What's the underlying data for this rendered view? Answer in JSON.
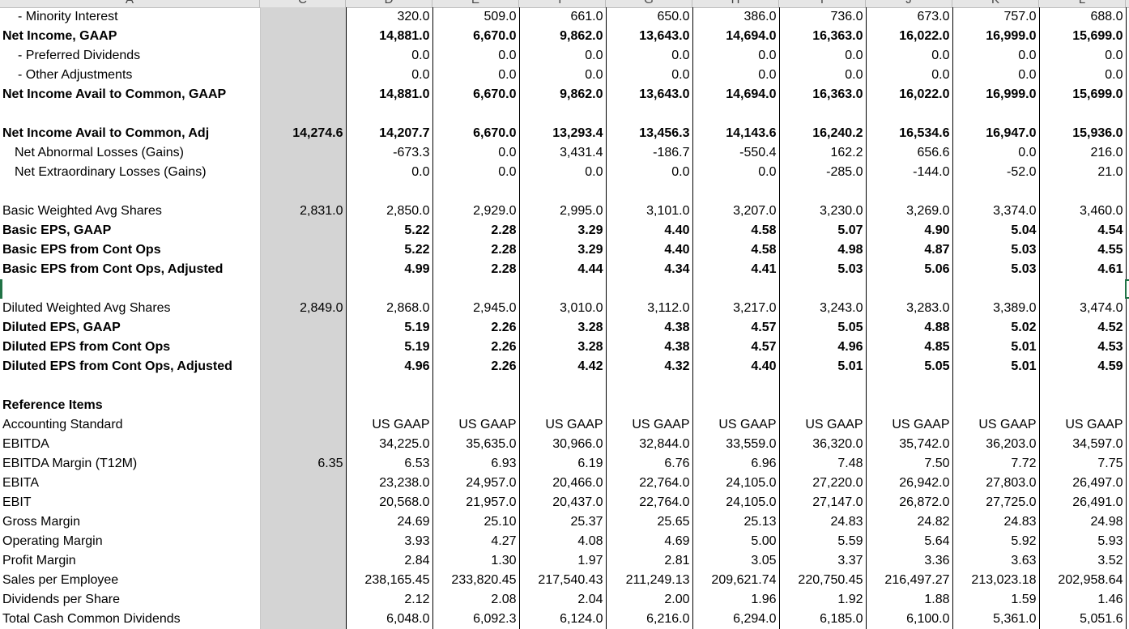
{
  "column_headers": [
    "A",
    "C",
    "D",
    "E",
    "F",
    "G",
    "H",
    "I",
    "J",
    "K",
    "L"
  ],
  "rows": [
    {
      "label": "- Minority Interest",
      "style": "ind1",
      "c": "",
      "v": [
        "320.0",
        "509.0",
        "661.0",
        "650.0",
        "386.0",
        "736.0",
        "673.0",
        "757.0",
        "688.0"
      ]
    },
    {
      "label": "Net Income, GAAP",
      "style": "bold",
      "c": "",
      "v": [
        "14,881.0",
        "6,670.0",
        "9,862.0",
        "13,643.0",
        "14,694.0",
        "16,363.0",
        "16,022.0",
        "16,999.0",
        "15,699.0"
      ]
    },
    {
      "label": "- Preferred Dividends",
      "style": "ind1",
      "c": "",
      "v": [
        "0.0",
        "0.0",
        "0.0",
        "0.0",
        "0.0",
        "0.0",
        "0.0",
        "0.0",
        "0.0"
      ]
    },
    {
      "label": "- Other Adjustments",
      "style": "ind1",
      "c": "",
      "v": [
        "0.0",
        "0.0",
        "0.0",
        "0.0",
        "0.0",
        "0.0",
        "0.0",
        "0.0",
        "0.0"
      ]
    },
    {
      "label": "Net Income Avail to Common, GAAP",
      "style": "bold",
      "c": "",
      "v": [
        "14,881.0",
        "6,670.0",
        "9,862.0",
        "13,643.0",
        "14,694.0",
        "16,363.0",
        "16,022.0",
        "16,999.0",
        "15,699.0"
      ]
    },
    {
      "label": "",
      "style": "",
      "c": "",
      "v": [
        "",
        "",
        "",
        "",
        "",
        "",
        "",
        "",
        ""
      ]
    },
    {
      "label": "Net Income Avail to Common, Adj",
      "style": "bold",
      "c": "14,274.6",
      "v": [
        "14,207.7",
        "6,670.0",
        "13,293.4",
        "13,456.3",
        "14,143.6",
        "16,240.2",
        "16,534.6",
        "16,947.0",
        "15,936.0"
      ]
    },
    {
      "label": "Net Abnormal Losses (Gains)",
      "style": "ind2",
      "c": "",
      "v": [
        "-673.3",
        "0.0",
        "3,431.4",
        "-186.7",
        "-550.4",
        "162.2",
        "656.6",
        "0.0",
        "216.0"
      ]
    },
    {
      "label": "Net Extraordinary Losses (Gains)",
      "style": "ind2",
      "c": "",
      "v": [
        "0.0",
        "0.0",
        "0.0",
        "0.0",
        "0.0",
        "-285.0",
        "-144.0",
        "-52.0",
        "21.0"
      ]
    },
    {
      "label": "",
      "style": "",
      "c": "",
      "v": [
        "",
        "",
        "",
        "",
        "",
        "",
        "",
        "",
        ""
      ]
    },
    {
      "label": "Basic Weighted Avg Shares",
      "style": "",
      "c": "2,831.0",
      "v": [
        "2,850.0",
        "2,929.0",
        "2,995.0",
        "3,101.0",
        "3,207.0",
        "3,230.0",
        "3,269.0",
        "3,374.0",
        "3,460.0"
      ]
    },
    {
      "label": "Basic EPS, GAAP",
      "style": "bold",
      "c": "",
      "v": [
        "5.22",
        "2.28",
        "3.29",
        "4.40",
        "4.58",
        "5.07",
        "4.90",
        "5.04",
        "4.54"
      ]
    },
    {
      "label": "Basic EPS from Cont Ops",
      "style": "bold",
      "c": "",
      "v": [
        "5.22",
        "2.28",
        "3.29",
        "4.40",
        "4.58",
        "4.98",
        "4.87",
        "5.03",
        "4.55"
      ]
    },
    {
      "label": "Basic EPS from Cont Ops, Adjusted",
      "style": "bold",
      "c": "",
      "v": [
        "4.99",
        "2.28",
        "4.44",
        "4.34",
        "4.41",
        "5.03",
        "5.06",
        "5.03",
        "4.61"
      ]
    },
    {
      "label": "",
      "style": "",
      "c": "",
      "v": [
        "",
        "",
        "",
        "",
        "",
        "",
        "",
        "",
        ""
      ]
    },
    {
      "label": "Diluted Weighted Avg Shares",
      "style": "",
      "c": "2,849.0",
      "v": [
        "2,868.0",
        "2,945.0",
        "3,010.0",
        "3,112.0",
        "3,217.0",
        "3,243.0",
        "3,283.0",
        "3,389.0",
        "3,474.0"
      ]
    },
    {
      "label": "Diluted EPS, GAAP",
      "style": "bold",
      "c": "",
      "v": [
        "5.19",
        "2.26",
        "3.28",
        "4.38",
        "4.57",
        "5.05",
        "4.88",
        "5.02",
        "4.52"
      ]
    },
    {
      "label": "Diluted EPS from Cont Ops",
      "style": "bold",
      "c": "",
      "v": [
        "5.19",
        "2.26",
        "3.28",
        "4.38",
        "4.57",
        "4.96",
        "4.85",
        "5.01",
        "4.53"
      ]
    },
    {
      "label": "Diluted EPS from Cont Ops, Adjusted",
      "style": "bold",
      "c": "",
      "v": [
        "4.96",
        "2.26",
        "4.42",
        "4.32",
        "4.40",
        "5.01",
        "5.05",
        "5.01",
        "4.59"
      ]
    },
    {
      "label": "",
      "style": "",
      "c": "",
      "v": [
        "",
        "",
        "",
        "",
        "",
        "",
        "",
        "",
        ""
      ]
    },
    {
      "label": "Reference Items",
      "style": "bold",
      "c": "",
      "v": [
        "",
        "",
        "",
        "",
        "",
        "",
        "",
        "",
        ""
      ]
    },
    {
      "label": "Accounting Standard",
      "style": "",
      "c": "",
      "v": [
        "US GAAP",
        "US GAAP",
        "US GAAP",
        "US GAAP",
        "US GAAP",
        "US GAAP",
        "US GAAP",
        "US GAAP",
        "US GAAP"
      ]
    },
    {
      "label": "EBITDA",
      "style": "",
      "c": "",
      "v": [
        "34,225.0",
        "35,635.0",
        "30,966.0",
        "32,844.0",
        "33,559.0",
        "36,320.0",
        "35,742.0",
        "36,203.0",
        "34,597.0"
      ]
    },
    {
      "label": "EBITDA Margin (T12M)",
      "style": "",
      "c": "6.35",
      "v": [
        "6.53",
        "6.93",
        "6.19",
        "6.76",
        "6.96",
        "7.48",
        "7.50",
        "7.72",
        "7.75"
      ]
    },
    {
      "label": "EBITA",
      "style": "",
      "c": "",
      "v": [
        "23,238.0",
        "24,957.0",
        "20,466.0",
        "22,764.0",
        "24,105.0",
        "27,220.0",
        "26,942.0",
        "27,803.0",
        "26,497.0"
      ]
    },
    {
      "label": "EBIT",
      "style": "",
      "c": "",
      "v": [
        "20,568.0",
        "21,957.0",
        "20,437.0",
        "22,764.0",
        "24,105.0",
        "27,147.0",
        "26,872.0",
        "27,725.0",
        "26,491.0"
      ]
    },
    {
      "label": "Gross Margin",
      "style": "",
      "c": "",
      "v": [
        "24.69",
        "25.10",
        "25.37",
        "25.65",
        "25.13",
        "24.83",
        "24.82",
        "24.83",
        "24.98"
      ]
    },
    {
      "label": "Operating Margin",
      "style": "",
      "c": "",
      "v": [
        "3.93",
        "4.27",
        "4.08",
        "4.69",
        "5.00",
        "5.59",
        "5.64",
        "5.92",
        "5.93"
      ]
    },
    {
      "label": "Profit Margin",
      "style": "",
      "c": "",
      "v": [
        "2.84",
        "1.30",
        "1.97",
        "2.81",
        "3.05",
        "3.37",
        "3.36",
        "3.63",
        "3.52"
      ]
    },
    {
      "label": "Sales per Employee",
      "style": "",
      "c": "",
      "v": [
        "238,165.45",
        "233,820.45",
        "217,540.43",
        "211,249.13",
        "209,621.74",
        "220,750.45",
        "216,497.27",
        "213,023.18",
        "202,958.64"
      ]
    },
    {
      "label": "Dividends per Share",
      "style": "",
      "c": "",
      "v": [
        "2.12",
        "2.08",
        "2.04",
        "2.00",
        "1.96",
        "1.92",
        "1.88",
        "1.59",
        "1.46"
      ]
    },
    {
      "label": "Total Cash Common Dividends",
      "style": "",
      "c": "",
      "v": [
        "6,048.0",
        "6,092.3",
        "6,124.0",
        "6,216.0",
        "6,294.0",
        "6,185.0",
        "6,100.0",
        "5,361.0",
        "5,051.6"
      ]
    }
  ]
}
